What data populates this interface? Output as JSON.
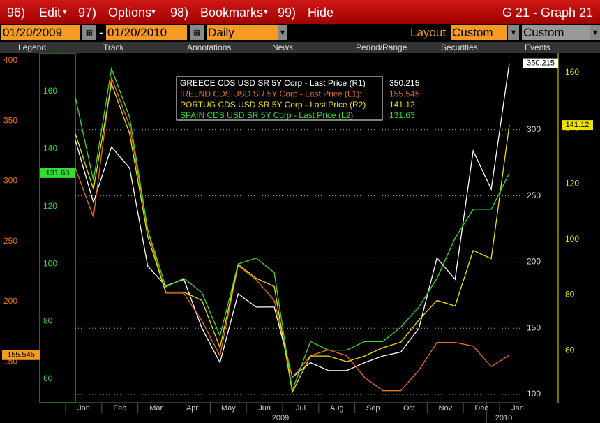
{
  "menu": {
    "items": [
      {
        "num": "96)",
        "label": "Edit"
      },
      {
        "num": "97)",
        "label": "Options"
      },
      {
        "num": "98)",
        "label": "Bookmarks"
      },
      {
        "num": "99)",
        "label": "Hide"
      }
    ],
    "screen": "G 21 - Graph 21"
  },
  "controls": {
    "start": "01/20/2009",
    "dash": "-",
    "end": "01/20/2010",
    "period": "Daily",
    "layout_label": "Layout",
    "layout": "Custom",
    "currency": "Custom CCY"
  },
  "toolbar": [
    "Legend",
    "Track",
    "Annotations",
    "News",
    "Period/Range",
    "Securities",
    "Events"
  ],
  "chart_data": {
    "type": "line",
    "categories": [
      "Jan",
      null,
      "Feb",
      null,
      "Mar",
      null,
      "Apr",
      null,
      "May",
      null,
      "Jun",
      null,
      "Jul",
      null,
      "Aug",
      null,
      "Sep",
      null,
      "Oct",
      null,
      "Nov",
      null,
      "Dec",
      null,
      "Jan"
    ],
    "years": [
      "2009",
      "2010"
    ],
    "y_axes": [
      {
        "id": "L1",
        "color": "#e8701a",
        "ylim": [
          116,
          404
        ],
        "yticks": [
          150,
          200,
          250,
          300,
          350,
          400
        ]
      },
      {
        "id": "L2",
        "color": "#33dd33",
        "ylim": [
          51.7,
          172.4
        ],
        "yticks": [
          60,
          80,
          100,
          120,
          140,
          160
        ]
      },
      {
        "id": "R1",
        "color": "#ffffff",
        "ylim": [
          93.7,
          355.8
        ],
        "yticks": [
          100,
          150,
          200,
          250,
          300
        ],
        "grid": true
      },
      {
        "id": "R2",
        "color": "#f0e000",
        "ylim": [
          41.2,
          166
        ],
        "yticks": [
          60,
          80,
          100,
          120,
          140,
          160
        ]
      }
    ],
    "series": [
      {
        "name": "GREECE CDS USD SR 5Y Corp - Last Price (R1)",
        "axis": "R1",
        "color": "#ffffff",
        "values": [
          292,
          245,
          287,
          271,
          197,
          182,
          187,
          150,
          124,
          176,
          166,
          166,
          113,
          124,
          118,
          118,
          124,
          129,
          132,
          150,
          203,
          187,
          284,
          255,
          350.215
        ]
      },
      {
        "name": "IRELND CDS USD SR 5Y Corp - Last Price (L1):",
        "axis": "L1",
        "color": "#e8701a",
        "values": [
          311,
          270,
          386,
          346,
          259,
          207,
          207,
          184,
          155,
          230,
          218,
          201,
          137,
          155,
          160,
          155,
          137,
          126,
          126,
          143,
          166,
          166,
          163,
          146,
          155.545
        ]
      },
      {
        "name": "PORTUG CDS USD SR 5Y Corp - Last Price (R2)",
        "axis": "R2",
        "color": "#f0e000",
        "values": [
          138,
          118,
          156,
          138,
          101,
          81,
          81,
          78,
          61,
          91,
          86,
          83,
          45,
          58,
          58,
          56,
          58,
          61,
          63,
          71,
          78,
          76,
          96,
          93,
          141.12
        ]
      },
      {
        "name": "SPAIN CDS USD SR 5Y Corp - Last Price (L2)",
        "axis": "L2",
        "color": "#33dd33",
        "values": [
          158,
          129,
          168,
          151,
          112,
          92,
          95,
          90,
          75,
          100,
          102,
          97,
          56,
          73,
          70,
          70,
          73,
          73,
          78,
          85,
          95,
          109,
          119,
          119,
          131.63
        ]
      }
    ]
  }
}
